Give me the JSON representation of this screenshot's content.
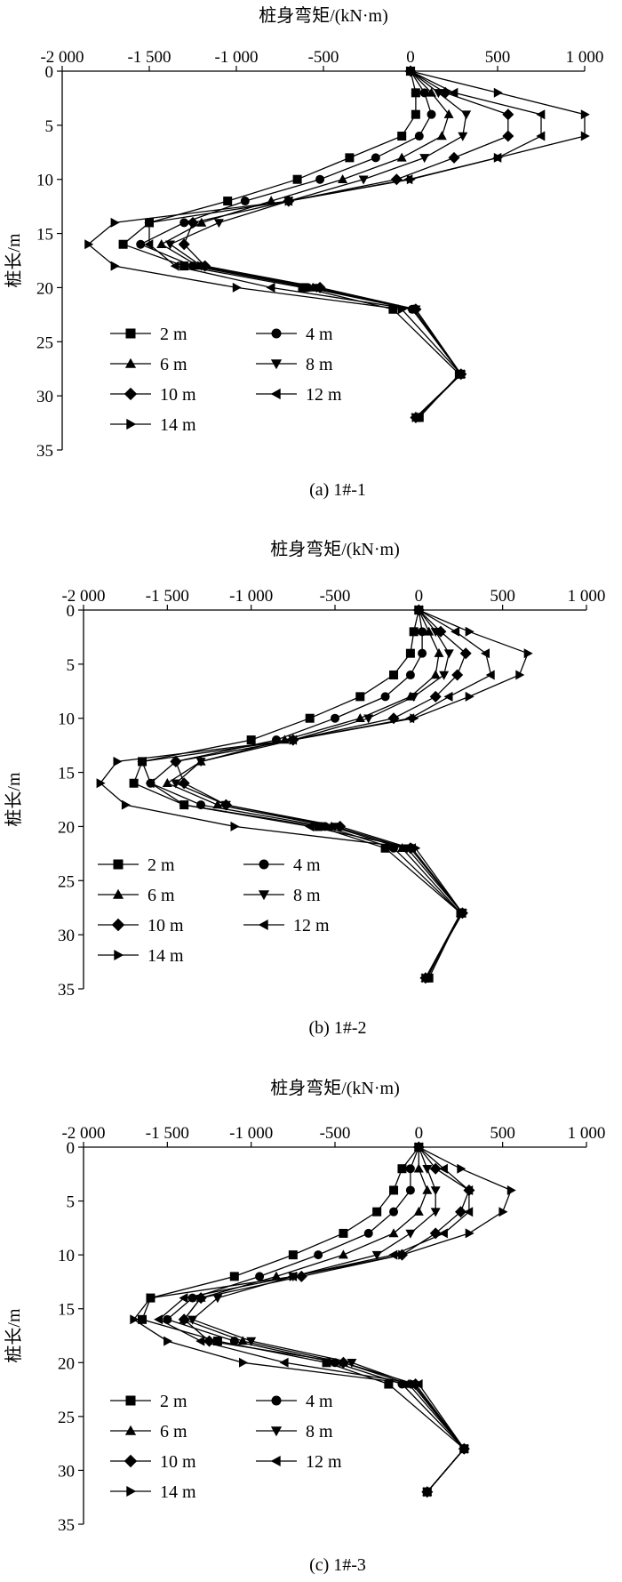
{
  "figure_captions": {
    "panel_a": "(a) 1#-1",
    "panel_b": "(b) 1#-2",
    "panel_c": "(c) 1#-3"
  },
  "chart_data": [
    {
      "type": "line",
      "panel": "(a) 1#-1",
      "title": "",
      "xlabel": "桩身弯矩/(kN·m)",
      "ylabel": "桩长/m",
      "x_tick_labels": [
        "-2 000",
        "-1 500",
        "-1 000",
        "-500",
        "0",
        "500",
        "1 000"
      ],
      "y_tick_labels": [
        "0",
        "5",
        "10",
        "15",
        "20",
        "25",
        "30",
        "35"
      ],
      "xlim": [
        -2000,
        1000
      ],
      "ylim": [
        35,
        0
      ],
      "y": [
        0,
        2,
        4,
        6,
        8,
        10,
        12,
        14,
        16,
        18,
        20,
        22,
        28,
        32
      ],
      "legend": "bottom-left",
      "series": [
        {
          "name": "2 m",
          "marker": "square",
          "x": [
            0,
            30,
            30,
            -50,
            -350,
            -650,
            -1050,
            -1500,
            -1650,
            -1300,
            -620,
            -100,
            280,
            50
          ]
        },
        {
          "name": "4 m",
          "marker": "circle",
          "x": [
            0,
            80,
            120,
            50,
            -200,
            -520,
            -950,
            -1300,
            -1550,
            -1250,
            -590,
            10,
            290,
            40
          ]
        },
        {
          "name": "6 m",
          "marker": "triangle-up",
          "x": [
            0,
            120,
            220,
            180,
            -50,
            -390,
            -800,
            -1200,
            -1430,
            -1220,
            -560,
            20,
            290,
            40
          ]
        },
        {
          "name": "8 m",
          "marker": "triangle-down",
          "x": [
            0,
            160,
            320,
            300,
            80,
            -270,
            -700,
            -1100,
            -1380,
            -1200,
            -540,
            30,
            290,
            30
          ]
        },
        {
          "name": "10 m",
          "marker": "diamond",
          "x": [
            0,
            200,
            560,
            560,
            250,
            -80,
            -700,
            -1250,
            -1300,
            -1180,
            -520,
            30,
            290,
            30
          ]
        },
        {
          "name": "12 m",
          "marker": "triangle-left",
          "x": [
            0,
            250,
            750,
            750,
            500,
            -10,
            -700,
            -1500,
            -1500,
            -1350,
            -800,
            10,
            290,
            30
          ]
        },
        {
          "name": "14 m",
          "marker": "triangle-right",
          "x": [
            0,
            500,
            1000,
            1000,
            500,
            0,
            -700,
            -1700,
            -1850,
            -1700,
            -1000,
            -50,
            290,
            30
          ]
        }
      ]
    },
    {
      "type": "line",
      "panel": "(b) 1#-2",
      "title": "",
      "xlabel": "桩身弯矩/(kN·m)",
      "ylabel": "桩长/m",
      "x_tick_labels": [
        "-2 000",
        "-1 500",
        "-1 000",
        "-500",
        "0",
        "500",
        "1 000"
      ],
      "y_tick_labels": [
        "0",
        "5",
        "10",
        "15",
        "20",
        "25",
        "30",
        "35"
      ],
      "xlim": [
        -2000,
        1000
      ],
      "ylim": [
        35,
        0
      ],
      "y": [
        0,
        2,
        4,
        6,
        8,
        10,
        12,
        14,
        16,
        18,
        20,
        22,
        28,
        34
      ],
      "legend": "bottom-left",
      "series": [
        {
          "name": "2 m",
          "marker": "square",
          "x": [
            0,
            -30,
            -50,
            -150,
            -350,
            -650,
            -1000,
            -1650,
            -1700,
            -1400,
            -600,
            -200,
            250,
            60
          ]
        },
        {
          "name": "4 m",
          "marker": "circle",
          "x": [
            0,
            20,
            20,
            -50,
            -200,
            -500,
            -850,
            -1450,
            -1600,
            -1300,
            -560,
            -150,
            250,
            50
          ]
        },
        {
          "name": "6 m",
          "marker": "triangle-up",
          "x": [
            0,
            60,
            120,
            100,
            -50,
            -350,
            -800,
            -1300,
            -1500,
            -1200,
            -520,
            -100,
            250,
            40
          ]
        },
        {
          "name": "8 m",
          "marker": "triangle-down",
          "x": [
            0,
            100,
            180,
            150,
            -30,
            -300,
            -750,
            -1300,
            -1450,
            -1150,
            -500,
            -70,
            260,
            40
          ]
        },
        {
          "name": "10 m",
          "marker": "diamond",
          "x": [
            0,
            130,
            280,
            230,
            100,
            -150,
            -750,
            -1450,
            -1400,
            -1150,
            -470,
            -50,
            260,
            40
          ]
        },
        {
          "name": "12 m",
          "marker": "triangle-left",
          "x": [
            0,
            220,
            400,
            430,
            180,
            -50,
            -750,
            -1650,
            -1600,
            -1400,
            -650,
            -40,
            260,
            40
          ]
        },
        {
          "name": "14 m",
          "marker": "triangle-right",
          "x": [
            0,
            300,
            650,
            600,
            300,
            -30,
            -750,
            -1800,
            -1900,
            -1750,
            -1100,
            -20,
            260,
            40
          ]
        }
      ]
    },
    {
      "type": "line",
      "panel": "(c) 1#-3",
      "title": "",
      "xlabel": "桩身弯矩/(kN·m)",
      "ylabel": "桩长/m",
      "x_tick_labels": [
        "-2 000",
        "-1 500",
        "-1 000",
        "-500",
        "0",
        "500",
        "1 000"
      ],
      "y_tick_labels": [
        "0",
        "5",
        "10",
        "15",
        "20",
        "25",
        "30",
        "35"
      ],
      "xlim": [
        -2000,
        1000
      ],
      "ylim": [
        35,
        0
      ],
      "y": [
        0,
        2,
        4,
        6,
        8,
        10,
        12,
        14,
        16,
        18,
        20,
        22,
        28,
        32
      ],
      "legend": "bottom-left",
      "series": [
        {
          "name": "2 m",
          "marker": "square",
          "x": [
            0,
            -100,
            -150,
            -250,
            -450,
            -750,
            -1100,
            -1600,
            -1650,
            -1200,
            -550,
            -180,
            270,
            50
          ]
        },
        {
          "name": "4 m",
          "marker": "circle",
          "x": [
            0,
            -50,
            -50,
            -150,
            -300,
            -600,
            -950,
            -1350,
            -1500,
            -1100,
            -500,
            -100,
            270,
            50
          ]
        },
        {
          "name": "6 m",
          "marker": "triangle-up",
          "x": [
            0,
            0,
            50,
            0,
            -150,
            -450,
            -850,
            -1300,
            -1400,
            -1050,
            -450,
            -60,
            270,
            50
          ]
        },
        {
          "name": "8 m",
          "marker": "triangle-down",
          "x": [
            0,
            50,
            100,
            100,
            -50,
            -250,
            -750,
            -1200,
            -1350,
            -1000,
            -400,
            -40,
            270,
            50
          ]
        },
        {
          "name": "10 m",
          "marker": "diamond",
          "x": [
            0,
            100,
            300,
            250,
            100,
            -100,
            -700,
            -1300,
            -1400,
            -1250,
            -450,
            -20,
            270,
            50
          ]
        },
        {
          "name": "12 m",
          "marker": "triangle-left",
          "x": [
            0,
            150,
            300,
            300,
            150,
            -150,
            -750,
            -1400,
            -1550,
            -1300,
            -800,
            0,
            270,
            50
          ]
        },
        {
          "name": "14 m",
          "marker": "triangle-right",
          "x": [
            0,
            250,
            550,
            500,
            300,
            -100,
            -750,
            -1600,
            -1700,
            -1500,
            -1050,
            -30,
            270,
            50
          ]
        }
      ]
    }
  ]
}
